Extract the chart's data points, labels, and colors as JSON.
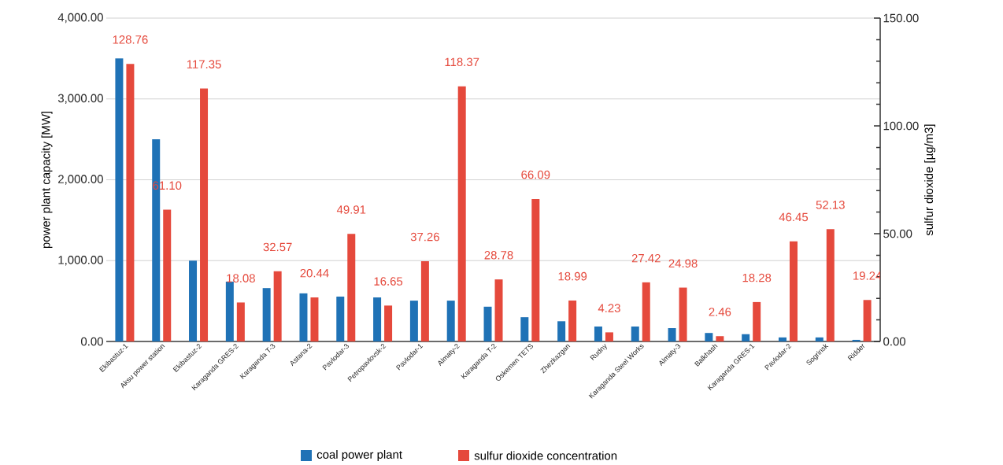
{
  "chart_data": {
    "type": "bar",
    "xlabel": null,
    "ylabel": "power plant capacity [MW]",
    "y2label": "sulfur dioxide [µg/m3]",
    "categories": [
      "Ekibastuz-1",
      "Aksu power station",
      "Ekibastuz-2",
      "Karaganda GRES-2",
      "Karaganda T-3",
      "Astana-2",
      "Pavlodar-3",
      "Petropavlovsk-2",
      "Pavlodar-1",
      "Almaty-2",
      "Karaganda T-2",
      "Oskemen TETS",
      "Zhezkazgan",
      "Rudny",
      "Karaganda Steel Works",
      "Almaty-3",
      "Balkhash",
      "Karaganda GRES-1",
      "Pavlodar-2",
      "Sogrinsk",
      "Ridder"
    ],
    "series": [
      {
        "name": "coal power plant",
        "color": "#1f72b6",
        "values": [
          3500,
          2500,
          1000,
          740,
          660,
          595,
          555,
          545,
          505,
          505,
          430,
          300,
          250,
          185,
          185,
          165,
          105,
          90,
          50,
          50,
          20
        ]
      },
      {
        "name": "sulfur dioxide concentration",
        "color": "#e5493c",
        "axis": "y2",
        "values": [
          128.76,
          61.1,
          117.35,
          18.08,
          32.57,
          20.44,
          49.91,
          16.65,
          37.26,
          118.37,
          28.78,
          66.09,
          18.99,
          4.23,
          27.42,
          24.98,
          2.46,
          18.28,
          46.45,
          52.13,
          19.24
        ],
        "value_labels": [
          "128.76",
          "61.10",
          "117.35",
          "18.08",
          "32.57",
          "20.44",
          "49.91",
          "16.65",
          "37.26",
          "118.37",
          "28.78",
          "66.09",
          "18.99",
          "4.23",
          "27.42",
          "24.98",
          "2.46",
          "18.28",
          "46.45",
          "52.13",
          "19.24"
        ]
      }
    ],
    "ylim": [
      0,
      4000
    ],
    "yticks": [
      {
        "value": 0,
        "label": "0.00"
      },
      {
        "value": 1000,
        "label": "1,000.00"
      },
      {
        "value": 2000,
        "label": "2,000.00"
      },
      {
        "value": 3000,
        "label": "3,000.00"
      },
      {
        "value": 4000,
        "label": "4,000.00"
      }
    ],
    "y2lim": [
      0,
      150
    ],
    "y2ticks": [
      {
        "value": 0,
        "label": "0.00"
      },
      {
        "value": 50,
        "label": "50.00"
      },
      {
        "value": 100,
        "label": "100.00"
      },
      {
        "value": 150,
        "label": "150.00"
      }
    ],
    "grid": "y",
    "legend": "bottom"
  }
}
